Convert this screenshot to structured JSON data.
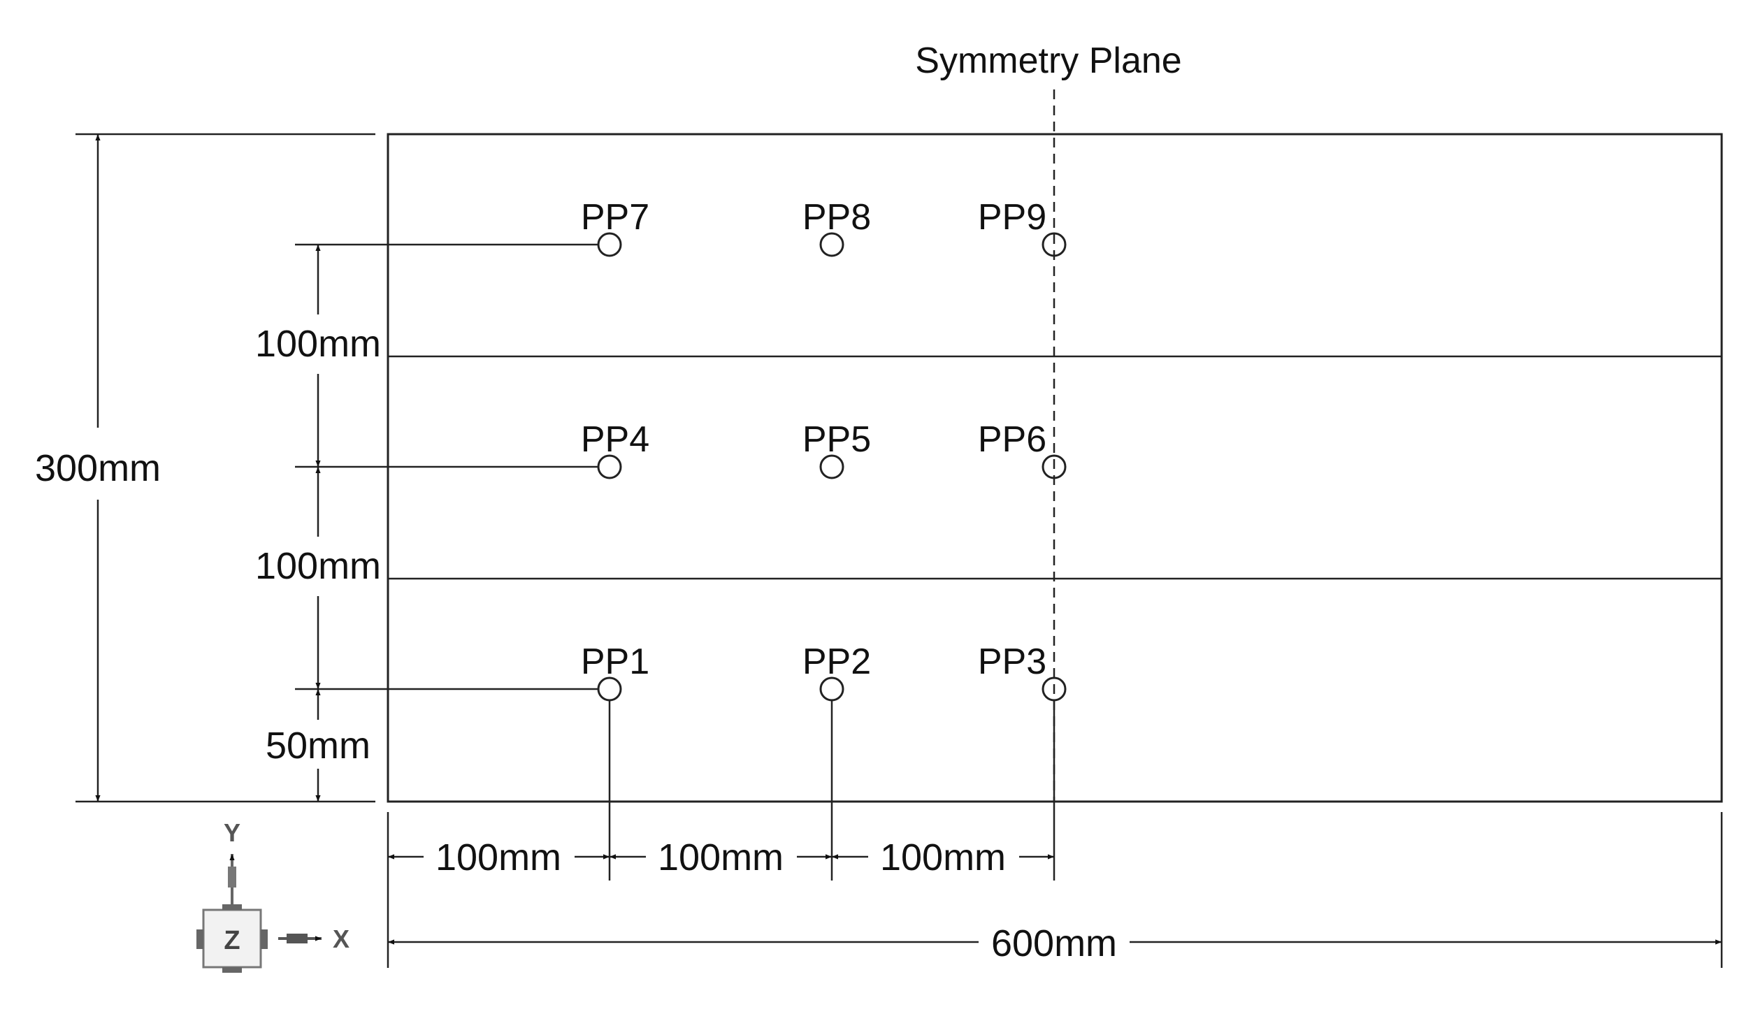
{
  "symmetry_plane_label": "Symmetry Plane",
  "points": [
    {
      "id": "pp1",
      "label": "PP1"
    },
    {
      "id": "pp2",
      "label": "PP2"
    },
    {
      "id": "pp3",
      "label": "PP3"
    },
    {
      "id": "pp4",
      "label": "PP4"
    },
    {
      "id": "pp5",
      "label": "PP5"
    },
    {
      "id": "pp6",
      "label": "PP6"
    },
    {
      "id": "pp7",
      "label": "PP7"
    },
    {
      "id": "pp8",
      "label": "PP8"
    },
    {
      "id": "pp9",
      "label": "PP9"
    }
  ],
  "dimensions": {
    "total_height": "300mm",
    "upper_spacing": "100mm",
    "middle_spacing": "100mm",
    "bottom_offset": "50mm",
    "x_spacing_1": "100mm",
    "x_spacing_2": "100mm",
    "x_spacing_3": "100mm",
    "total_width": "600mm"
  },
  "axis_triad": {
    "y_label": "Y",
    "z_label": "Z",
    "x_label": "X"
  }
}
